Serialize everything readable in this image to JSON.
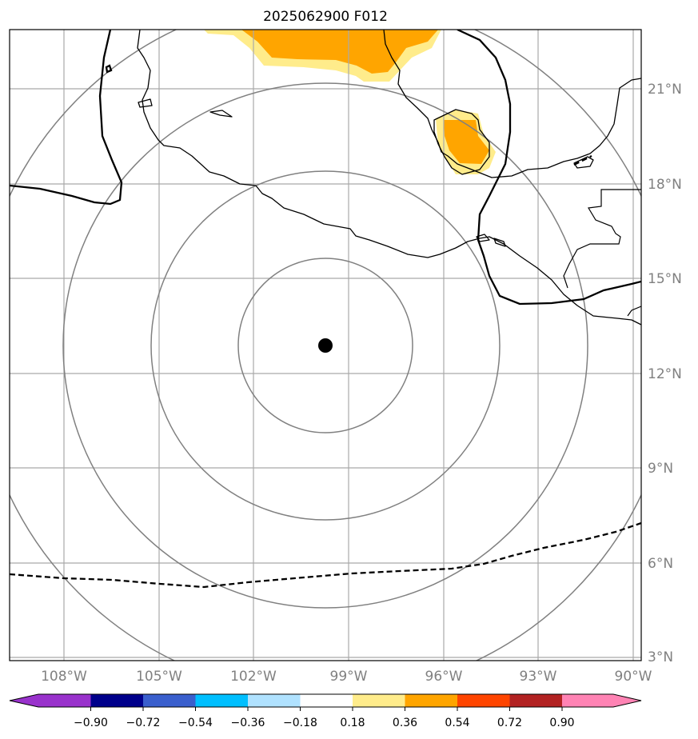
{
  "title": "2025062900 F012",
  "longitude_labels": [
    "108°W",
    "105°W",
    "102°W",
    "99°W",
    "96°W",
    "93°W",
    "90°W"
  ],
  "latitude_labels": [
    "21°N",
    "18°N",
    "15°N",
    "12°N",
    "9°N",
    "6°N",
    "3°N"
  ],
  "center_marker": {
    "lon": -99.8,
    "lat": 12.9
  },
  "colorbar": {
    "ticks": [
      "−0.90",
      "−0.72",
      "−0.54",
      "−0.36",
      "−0.18",
      "0.18",
      "0.36",
      "0.54",
      "0.72",
      "0.90"
    ],
    "colors": [
      "#9932cc",
      "#00008b",
      "#3a5fcd",
      "#00bfff",
      "#b0e2ff",
      "#ffffff",
      "#ffec8b",
      "#ffa500",
      "#ff4500",
      "#b22222",
      "#ff83b4"
    ]
  },
  "colors": {
    "shade_light": "#ffec8b",
    "shade_orange": "#ffa500",
    "grid": "#a9a9a9",
    "range_rings": "#808080"
  }
}
